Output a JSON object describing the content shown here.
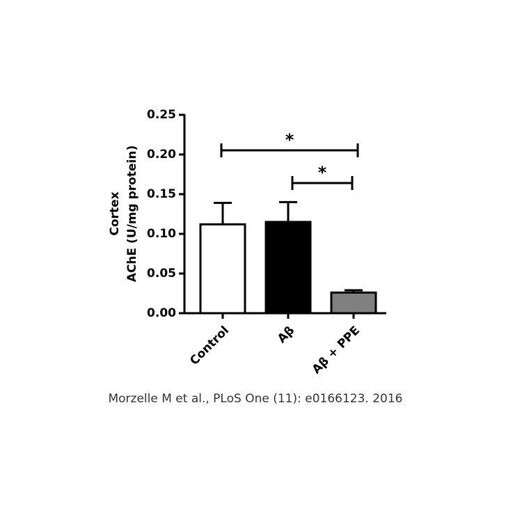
{
  "chart_data": {
    "type": "bar",
    "y_label": [
      "Cortex",
      "AChE (U/mg protein)"
    ],
    "categories": [
      "Control",
      "Aβ",
      "Aβ + PPE"
    ],
    "values": [
      0.112,
      0.115,
      0.026
    ],
    "errors": [
      0.027,
      0.025,
      0.003
    ],
    "colors": [
      "#ffffff",
      "#000000",
      "#808080"
    ],
    "ylim": [
      0,
      0.25
    ],
    "yticks": [
      {
        "value": 0,
        "label": "0.00"
      },
      0.05,
      {
        "value": 0.1,
        "label": "0.10"
      },
      0.15,
      {
        "value": 0.2,
        "label": "0.20"
      },
      0.25
    ],
    "significance": [
      {
        "label": "*",
        "from": "Control",
        "to": "Aβ + PPE"
      },
      {
        "label": "*",
        "from": "Aβ",
        "to": "Aβ + PPE"
      }
    ],
    "caption": "Morzelle M et al., PLoS One (11): e0166123. 2016"
  }
}
